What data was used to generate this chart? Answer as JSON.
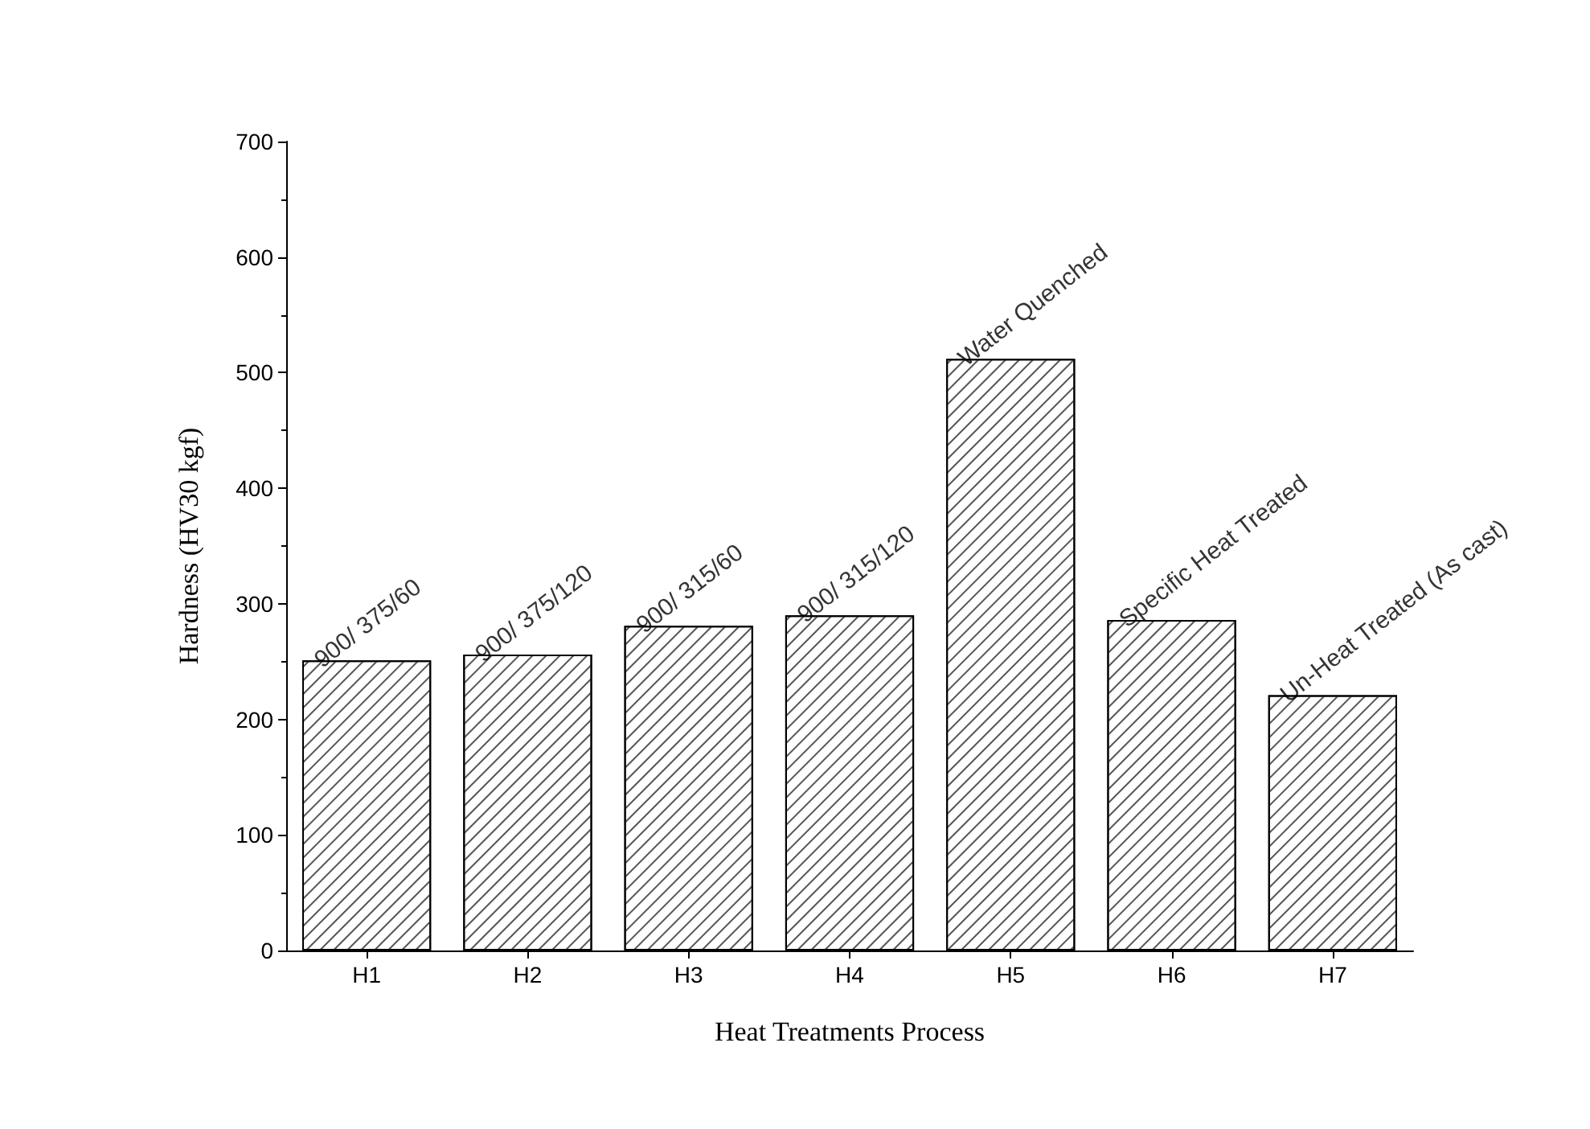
{
  "chart_data": {
    "type": "bar",
    "xlabel": "Heat Treatments Process",
    "ylabel": "Hardness (HV30 kgf)",
    "categories": [
      "H1",
      "H2",
      "H3",
      "H4",
      "H5",
      "H6",
      "H7"
    ],
    "values": [
      251,
      256,
      281,
      290,
      512,
      286,
      221
    ],
    "color": "#ffffff",
    "ylim": [
      0,
      700
    ],
    "yticks": [
      0,
      100,
      200,
      300,
      400,
      500,
      600,
      700
    ],
    "grid": false,
    "annotations": [
      {
        "text": "900/ 375/60",
        "x": "H1",
        "y": 251
      },
      {
        "text": "900/ 375/120",
        "x": "H2",
        "y": 256
      },
      {
        "text": "900/ 315/60",
        "x": "H3",
        "y": 281
      },
      {
        "text": "900/ 315/120",
        "x": "H4",
        "y": 290
      },
      {
        "text": "Water Quenched",
        "x": "H5",
        "y": 512
      },
      {
        "text": "Specific Heat Treated",
        "x": "H6",
        "y": 286
      },
      {
        "text": "Un-Heat Treated (As cast)",
        "x": "H7",
        "y": 221
      }
    ]
  }
}
